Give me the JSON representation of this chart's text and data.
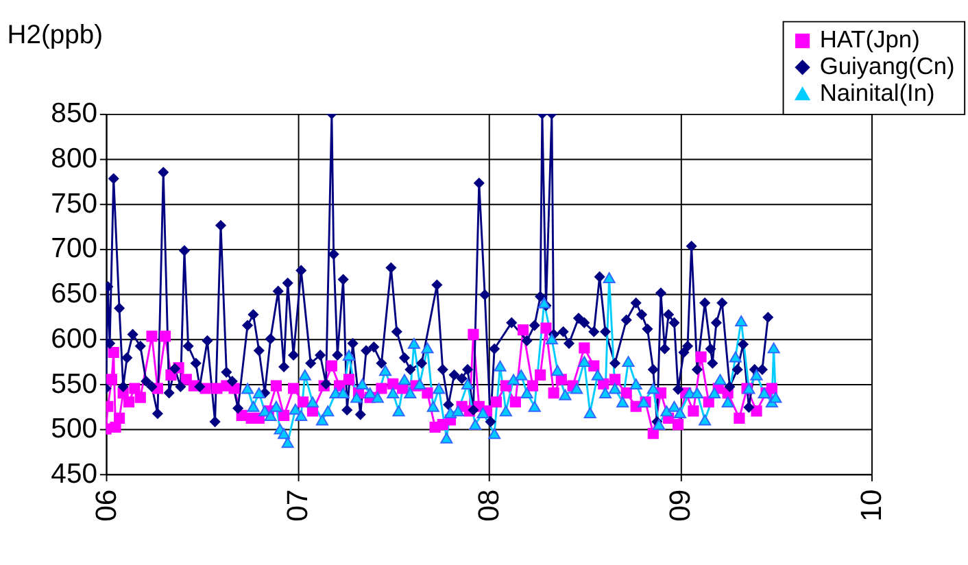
{
  "chart_data": {
    "type": "line",
    "ylabel": "H2(ppb)",
    "xlim": [
      6,
      10
    ],
    "ylim": [
      450,
      850
    ],
    "xticks": [
      {
        "value": 6,
        "label": "06"
      },
      {
        "value": 7,
        "label": "07"
      },
      {
        "value": 8,
        "label": "08"
      },
      {
        "value": 9,
        "label": "09"
      },
      {
        "value": 10,
        "label": "10"
      }
    ],
    "yticks": [
      450,
      500,
      550,
      600,
      650,
      700,
      750,
      800,
      850
    ],
    "grid": true,
    "legend": "top right",
    "line_style": "solid",
    "series": [
      {
        "name": "HAT(Jpn)",
        "color": "#ff00ff",
        "marker": "square",
        "x": [
          6.0,
          6.01,
          6.03,
          6.04,
          6.05,
          6.07,
          6.09,
          6.12,
          6.15,
          6.18,
          6.24,
          6.27,
          6.31,
          6.34,
          6.38,
          6.42,
          6.46,
          6.52,
          6.58,
          6.63,
          6.67,
          6.71,
          6.76,
          6.8,
          6.85,
          6.89,
          6.93,
          6.98,
          7.03,
          7.08,
          7.14,
          7.18,
          7.22,
          7.27,
          7.32,
          7.38,
          7.44,
          7.5,
          7.55,
          7.62,
          7.68,
          7.72,
          7.76,
          7.8,
          7.86,
          7.9,
          7.92,
          7.95,
          7.99,
          8.04,
          8.09,
          8.14,
          8.18,
          8.23,
          8.27,
          8.3,
          8.34,
          8.38,
          8.44,
          8.5,
          8.55,
          8.6,
          8.66,
          8.72,
          8.77,
          8.82,
          8.86,
          8.9,
          8.94,
          8.99,
          9.03,
          9.07,
          9.11,
          9.15,
          9.2,
          9.25,
          9.31,
          9.35,
          9.4,
          9.45,
          9.48
        ],
        "values": [
          500,
          525,
          555,
          585,
          502,
          512,
          540,
          530,
          545,
          535,
          603,
          545,
          603,
          560,
          568,
          555,
          548,
          545,
          545,
          548,
          545,
          515,
          512,
          512,
          520,
          548,
          515,
          545,
          530,
          520,
          548,
          570,
          548,
          555,
          540,
          535,
          545,
          550,
          545,
          548,
          540,
          502,
          505,
          510,
          525,
          520,
          605,
          525,
          520,
          530,
          548,
          530,
          610,
          548,
          560,
          612,
          540,
          555,
          548,
          590,
          570,
          550,
          555,
          540,
          525,
          530,
          495,
          540,
          512,
          505,
          540,
          520,
          580,
          530,
          545,
          540,
          512,
          545,
          520,
          540,
          545
        ]
      },
      {
        "name": "Guiyang(Cn)",
        "color": "#000080",
        "marker": "diamond",
        "x": [
          6.0,
          6.01,
          6.02,
          6.04,
          6.07,
          6.09,
          6.11,
          6.14,
          6.18,
          6.21,
          6.24,
          6.27,
          6.3,
          6.33,
          6.36,
          6.39,
          6.41,
          6.43,
          6.47,
          6.49,
          6.53,
          6.57,
          6.6,
          6.63,
          6.66,
          6.69,
          6.74,
          6.77,
          6.8,
          6.83,
          6.86,
          6.9,
          6.93,
          6.95,
          6.98,
          7.02,
          7.07,
          7.12,
          7.15,
          7.18,
          7.19,
          7.21,
          7.24,
          7.26,
          7.29,
          7.33,
          7.36,
          7.4,
          7.44,
          7.49,
          7.52,
          7.56,
          7.59,
          7.65,
          7.73,
          7.76,
          7.79,
          7.82,
          7.86,
          7.89,
          7.92,
          7.95,
          7.98,
          8.01,
          8.03,
          8.12,
          8.2,
          8.24,
          8.27,
          8.28,
          8.3,
          8.33,
          8.34,
          8.39,
          8.42,
          8.47,
          8.5,
          8.55,
          8.58,
          8.61,
          8.66,
          8.72,
          8.77,
          8.8,
          8.83,
          8.86,
          8.88,
          8.9,
          8.92,
          8.94,
          8.97,
          8.99,
          9.02,
          9.04,
          9.06,
          9.09,
          9.13,
          9.16,
          9.17,
          9.19,
          9.22,
          9.26,
          9.3,
          9.33,
          9.36,
          9.39,
          9.43,
          9.46
        ],
        "values": [
          545,
          658,
          595,
          778,
          634,
          547,
          579,
          605,
          592,
          553,
          547,
          517,
          785,
          540,
          567,
          547,
          698,
          592,
          573,
          547,
          598,
          508,
          726,
          563,
          553,
          523,
          615,
          627,
          587,
          540,
          600,
          653,
          569,
          662,
          582,
          676,
          573,
          582,
          550,
          850,
          694,
          582,
          666,
          521,
          595,
          516,
          587,
          591,
          573,
          679,
          608,
          579,
          566,
          573,
          660,
          566,
          527,
          560,
          556,
          566,
          521,
          773,
          649,
          508,
          589,
          618,
          598,
          615,
          647,
          850,
          637,
          850,
          605,
          608,
          595,
          623,
          618,
          608,
          669,
          608,
          573,
          621,
          640,
          627,
          611,
          566,
          508,
          651,
          589,
          627,
          618,
          544,
          585,
          592,
          703,
          566,
          640,
          589,
          573,
          618,
          640,
          547,
          566,
          594,
          524,
          566,
          566,
          624
        ]
      },
      {
        "name": "Nainital(In)",
        "color": "#00ccff",
        "marker": "triangle",
        "x": [
          6.74,
          6.77,
          6.8,
          6.83,
          6.86,
          6.89,
          6.91,
          6.93,
          6.95,
          6.99,
          7.02,
          7.04,
          7.08,
          7.13,
          7.16,
          7.2,
          7.24,
          7.27,
          7.31,
          7.34,
          7.38,
          7.42,
          7.46,
          7.5,
          7.53,
          7.56,
          7.59,
          7.61,
          7.64,
          7.68,
          7.71,
          7.74,
          7.78,
          7.8,
          7.84,
          7.89,
          7.93,
          7.97,
          8.03,
          8.06,
          8.09,
          8.13,
          8.17,
          8.2,
          8.24,
          8.29,
          8.33,
          8.36,
          8.4,
          8.46,
          8.5,
          8.53,
          8.57,
          8.61,
          8.63,
          8.66,
          8.7,
          8.73,
          8.77,
          8.81,
          8.86,
          8.89,
          8.93,
          8.97,
          9.0,
          9.05,
          9.09,
          9.13,
          9.18,
          9.21,
          9.25,
          9.29,
          9.32,
          9.36,
          9.4,
          9.44,
          9.48,
          9.49,
          9.5
        ],
        "values": [
          545,
          525,
          540,
          520,
          515,
          525,
          500,
          495,
          485,
          522,
          515,
          560,
          530,
          510,
          520,
          540,
          540,
          582,
          535,
          550,
          540,
          535,
          565,
          540,
          520,
          555,
          540,
          595,
          550,
          590,
          525,
          545,
          490,
          518,
          520,
          550,
          505,
          518,
          495,
          570,
          520,
          555,
          560,
          540,
          525,
          640,
          600,
          565,
          538,
          545,
          575,
          518,
          560,
          540,
          668,
          545,
          530,
          575,
          550,
          530,
          545,
          505,
          520,
          525,
          518,
          540,
          540,
          510,
          540,
          555,
          530,
          580,
          620,
          545,
          560,
          540,
          530,
          590,
          535
        ]
      }
    ]
  }
}
